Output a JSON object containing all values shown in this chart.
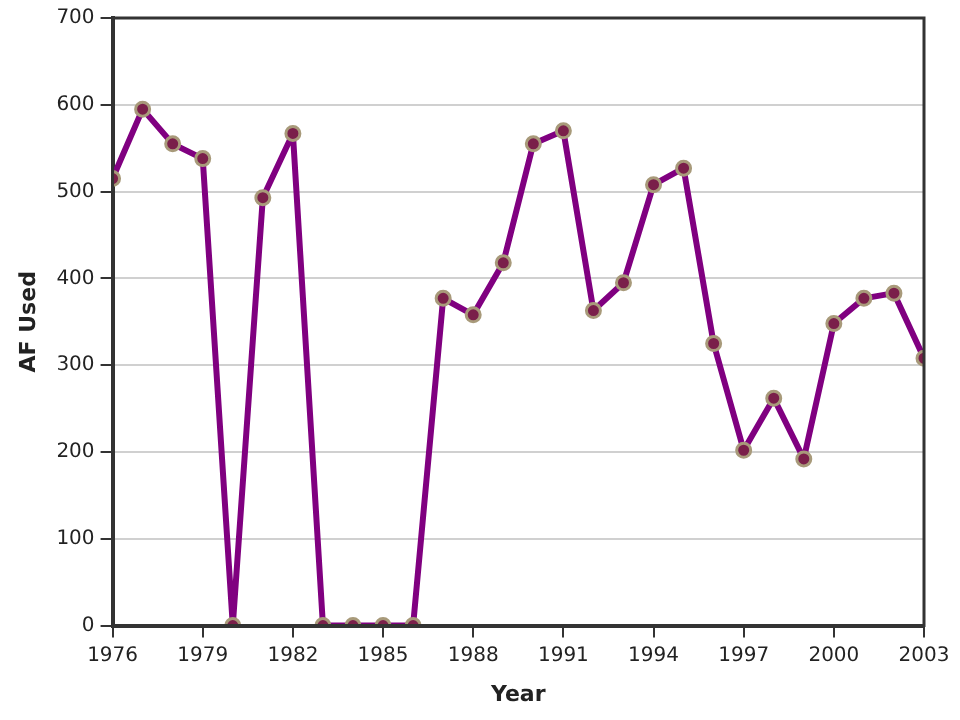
{
  "chart_data": {
    "type": "line",
    "xlabel": "Year",
    "ylabel": "AF Used",
    "x": [
      1976,
      1977,
      1978,
      1979,
      1980,
      1981,
      1982,
      1983,
      1984,
      1985,
      1986,
      1987,
      1988,
      1989,
      1990,
      1991,
      1992,
      1993,
      1994,
      1995,
      1996,
      1997,
      1998,
      1999,
      2000,
      2001,
      2002,
      2003
    ],
    "series": [
      {
        "color": "#800080",
        "values": [
          515,
          595,
          555,
          538,
          0,
          493,
          567,
          0,
          0,
          0,
          0,
          377,
          358,
          418,
          555,
          570,
          363,
          395,
          508,
          527,
          325,
          202,
          262,
          192,
          348,
          377,
          383,
          308
        ]
      }
    ],
    "xlim": [
      1976,
      2003
    ],
    "xticks": [
      1976,
      1979,
      1982,
      1985,
      1988,
      1991,
      1994,
      1997,
      2000,
      2003
    ],
    "ylim": [
      0,
      700
    ],
    "yticks": [
      0,
      100,
      200,
      300,
      400,
      500,
      600,
      700
    ],
    "grid": "y",
    "legend": false,
    "marker": "circle",
    "line_style": "solid"
  }
}
